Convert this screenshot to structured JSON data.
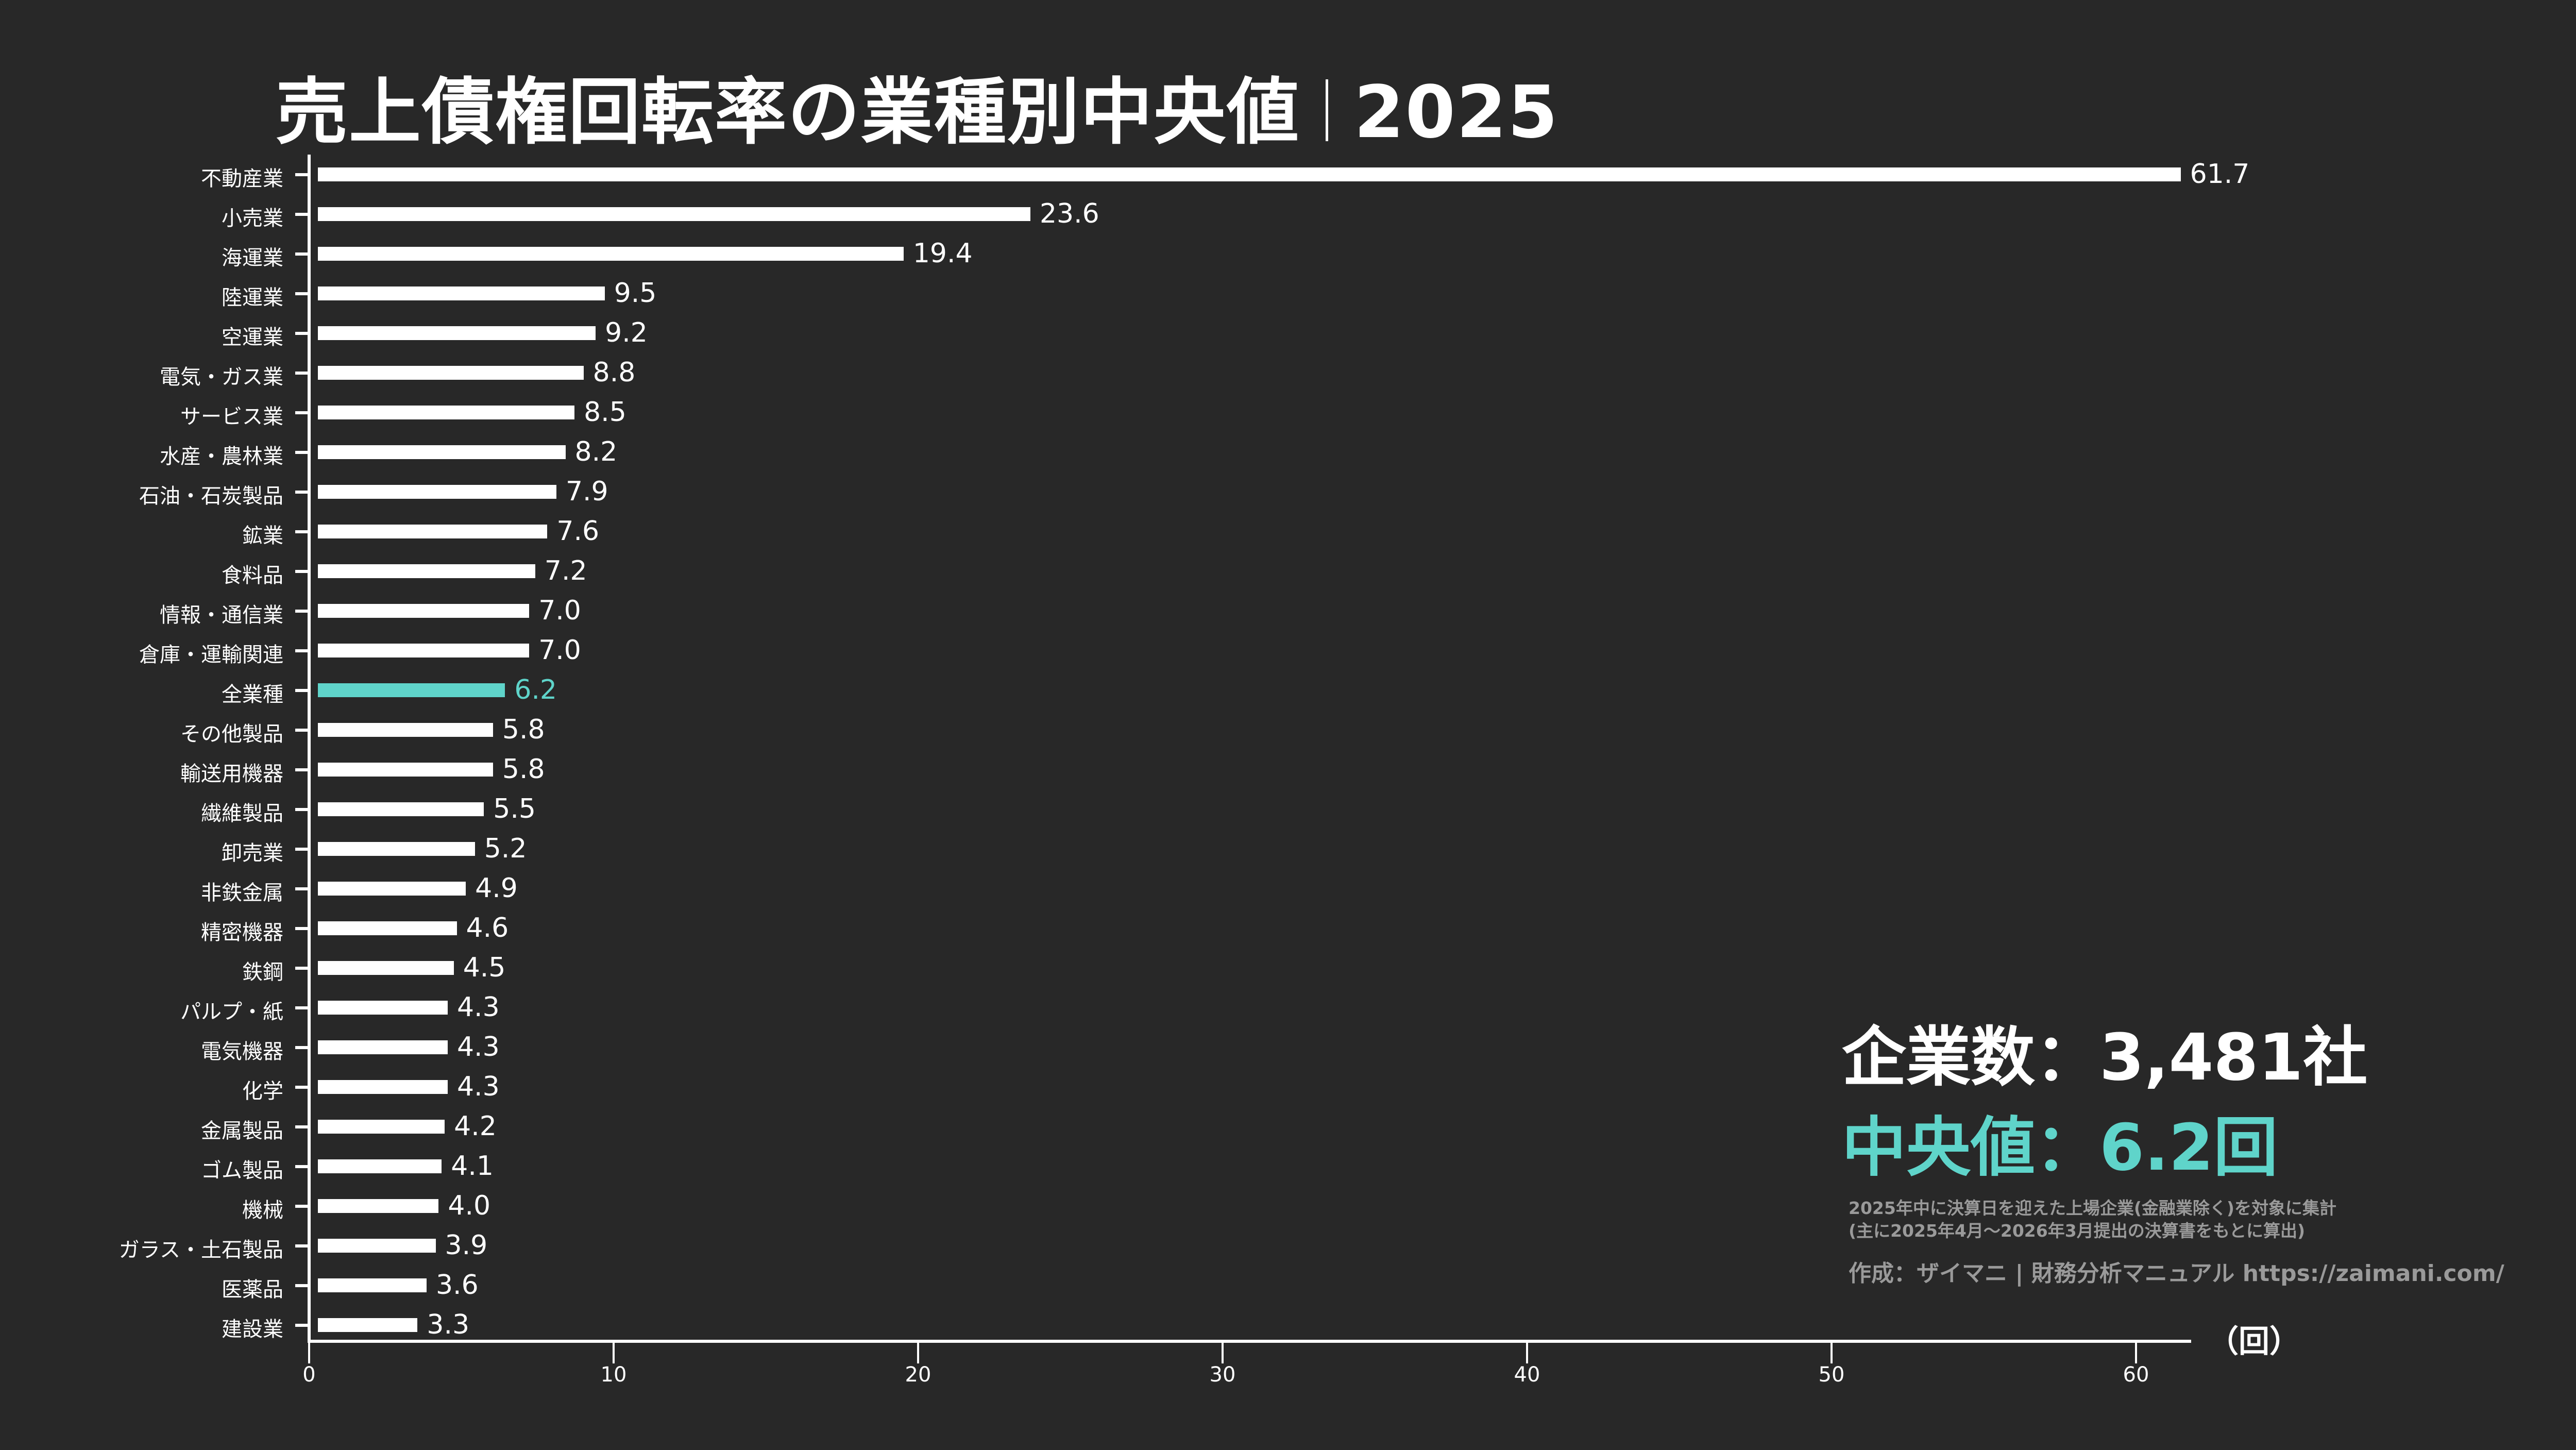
{
  "title": {
    "main": "売上債権回転率の業種別中央値",
    "year": "2025"
  },
  "axis": {
    "unit_label": "（回）",
    "x_ticks": [
      "0",
      "10",
      "20",
      "30",
      "40",
      "50",
      "60"
    ]
  },
  "stats": {
    "company_count": "企業数：3,481社",
    "median": "中央値：6.2回"
  },
  "notes": {
    "line1": "2025年中に決算日を迎えた上場企業(金融業除く)を対象に集計",
    "line2": "(主に2025年4月〜2026年3月提出の決算書をもとに算出)",
    "credit": "作成：ザイマニ | 財務分析マニュアル https://zaimani.com/"
  },
  "colors": {
    "background": "#282828",
    "bar": "#ffffff",
    "highlight": "#5fd4ca",
    "note_text": "#9a9a9a"
  },
  "chart_data": {
    "type": "bar",
    "orientation": "horizontal",
    "title": "売上債権回転率の業種別中央値｜2025",
    "xlabel": "（回）",
    "ylabel": "",
    "xlim": [
      0,
      62
    ],
    "x_ticks": [
      0,
      10,
      20,
      30,
      40,
      50,
      60
    ],
    "grid": false,
    "highlight_category": "全業種",
    "categories": [
      "不動産業",
      "小売業",
      "海運業",
      "陸運業",
      "空運業",
      "電気・ガス業",
      "サービス業",
      "水産・農林業",
      "石油・石炭製品",
      "鉱業",
      "食料品",
      "情報・通信業",
      "倉庫・運輸関連",
      "全業種",
      "その他製品",
      "輸送用機器",
      "繊維製品",
      "卸売業",
      "非鉄金属",
      "精密機器",
      "鉄鋼",
      "パルプ・紙",
      "電気機器",
      "化学",
      "金属製品",
      "ゴム製品",
      "機械",
      "ガラス・土石製品",
      "医薬品",
      "建設業"
    ],
    "values": [
      61.7,
      23.6,
      19.4,
      9.5,
      9.2,
      8.8,
      8.5,
      8.2,
      7.9,
      7.6,
      7.2,
      7.0,
      7.0,
      6.2,
      5.8,
      5.8,
      5.5,
      5.2,
      4.9,
      4.6,
      4.5,
      4.3,
      4.3,
      4.3,
      4.2,
      4.1,
      4.0,
      3.9,
      3.6,
      3.3
    ],
    "value_labels": [
      "61.7",
      "23.6",
      "19.4",
      "9.5",
      "9.2",
      "8.8",
      "8.5",
      "8.2",
      "7.9",
      "7.6",
      "7.2",
      "7.0",
      "7.0",
      "6.2",
      "5.8",
      "5.8",
      "5.5",
      "5.2",
      "4.9",
      "4.6",
      "4.5",
      "4.3",
      "4.3",
      "4.3",
      "4.2",
      "4.1",
      "4.0",
      "3.9",
      "3.6",
      "3.3"
    ],
    "annotations": [
      "企業数：3,481社",
      "中央値：6.2回"
    ]
  }
}
